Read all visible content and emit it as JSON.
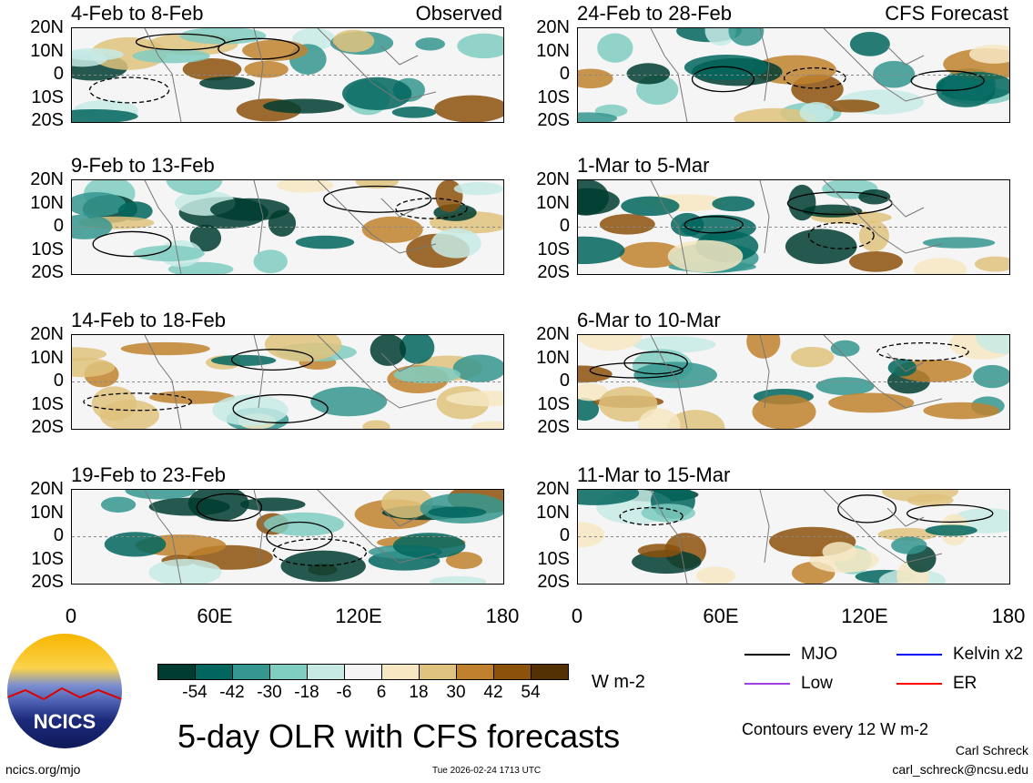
{
  "panels": [
    {
      "title": "4-Feb to 8-Feb",
      "tag": "Observed"
    },
    {
      "title": "24-Feb to 28-Feb",
      "tag": "CFS Forecast"
    },
    {
      "title": "9-Feb to 13-Feb",
      "tag": ""
    },
    {
      "title": "1-Mar to 5-Mar",
      "tag": ""
    },
    {
      "title": "14-Feb to 18-Feb",
      "tag": ""
    },
    {
      "title": "6-Mar to 10-Mar",
      "tag": ""
    },
    {
      "title": "19-Feb to 23-Feb",
      "tag": ""
    },
    {
      "title": "11-Mar to 15-Mar",
      "tag": ""
    }
  ],
  "lat_labels": [
    "20N",
    "10N",
    "0",
    "10S",
    "20S"
  ],
  "lon_labels": [
    "0",
    "60E",
    "120E",
    "180"
  ],
  "colorbar": {
    "colors": [
      "#003c30",
      "#01665e",
      "#35978f",
      "#80cdc1",
      "#c7eae5",
      "#f5f5f5",
      "#f6e8c3",
      "#dfc27d",
      "#bf812d",
      "#8c510a",
      "#543005"
    ],
    "labels": [
      "-54",
      "-42",
      "-30",
      "-18",
      "-6",
      "6",
      "18",
      "30",
      "42",
      "54"
    ],
    "units": "W m-2"
  },
  "legend": {
    "mjo": "MJO",
    "kelvin": "Kelvin x2",
    "low": "Low",
    "er": "ER",
    "contours": "Contours every 12 W m-2"
  },
  "legend_colors": {
    "mjo": "#000000",
    "kelvin": "#0000ff",
    "low": "#a040e0",
    "er": "#ff0000"
  },
  "title": "5-day OLR with CFS forecasts",
  "timestamp": "Tue 2026-02-24 1713 UTC",
  "url": "ncics.org/mjo",
  "author": "Carl Schreck",
  "email": "carl_schreck@ncsu.edu",
  "logo_text": "NCICS"
}
